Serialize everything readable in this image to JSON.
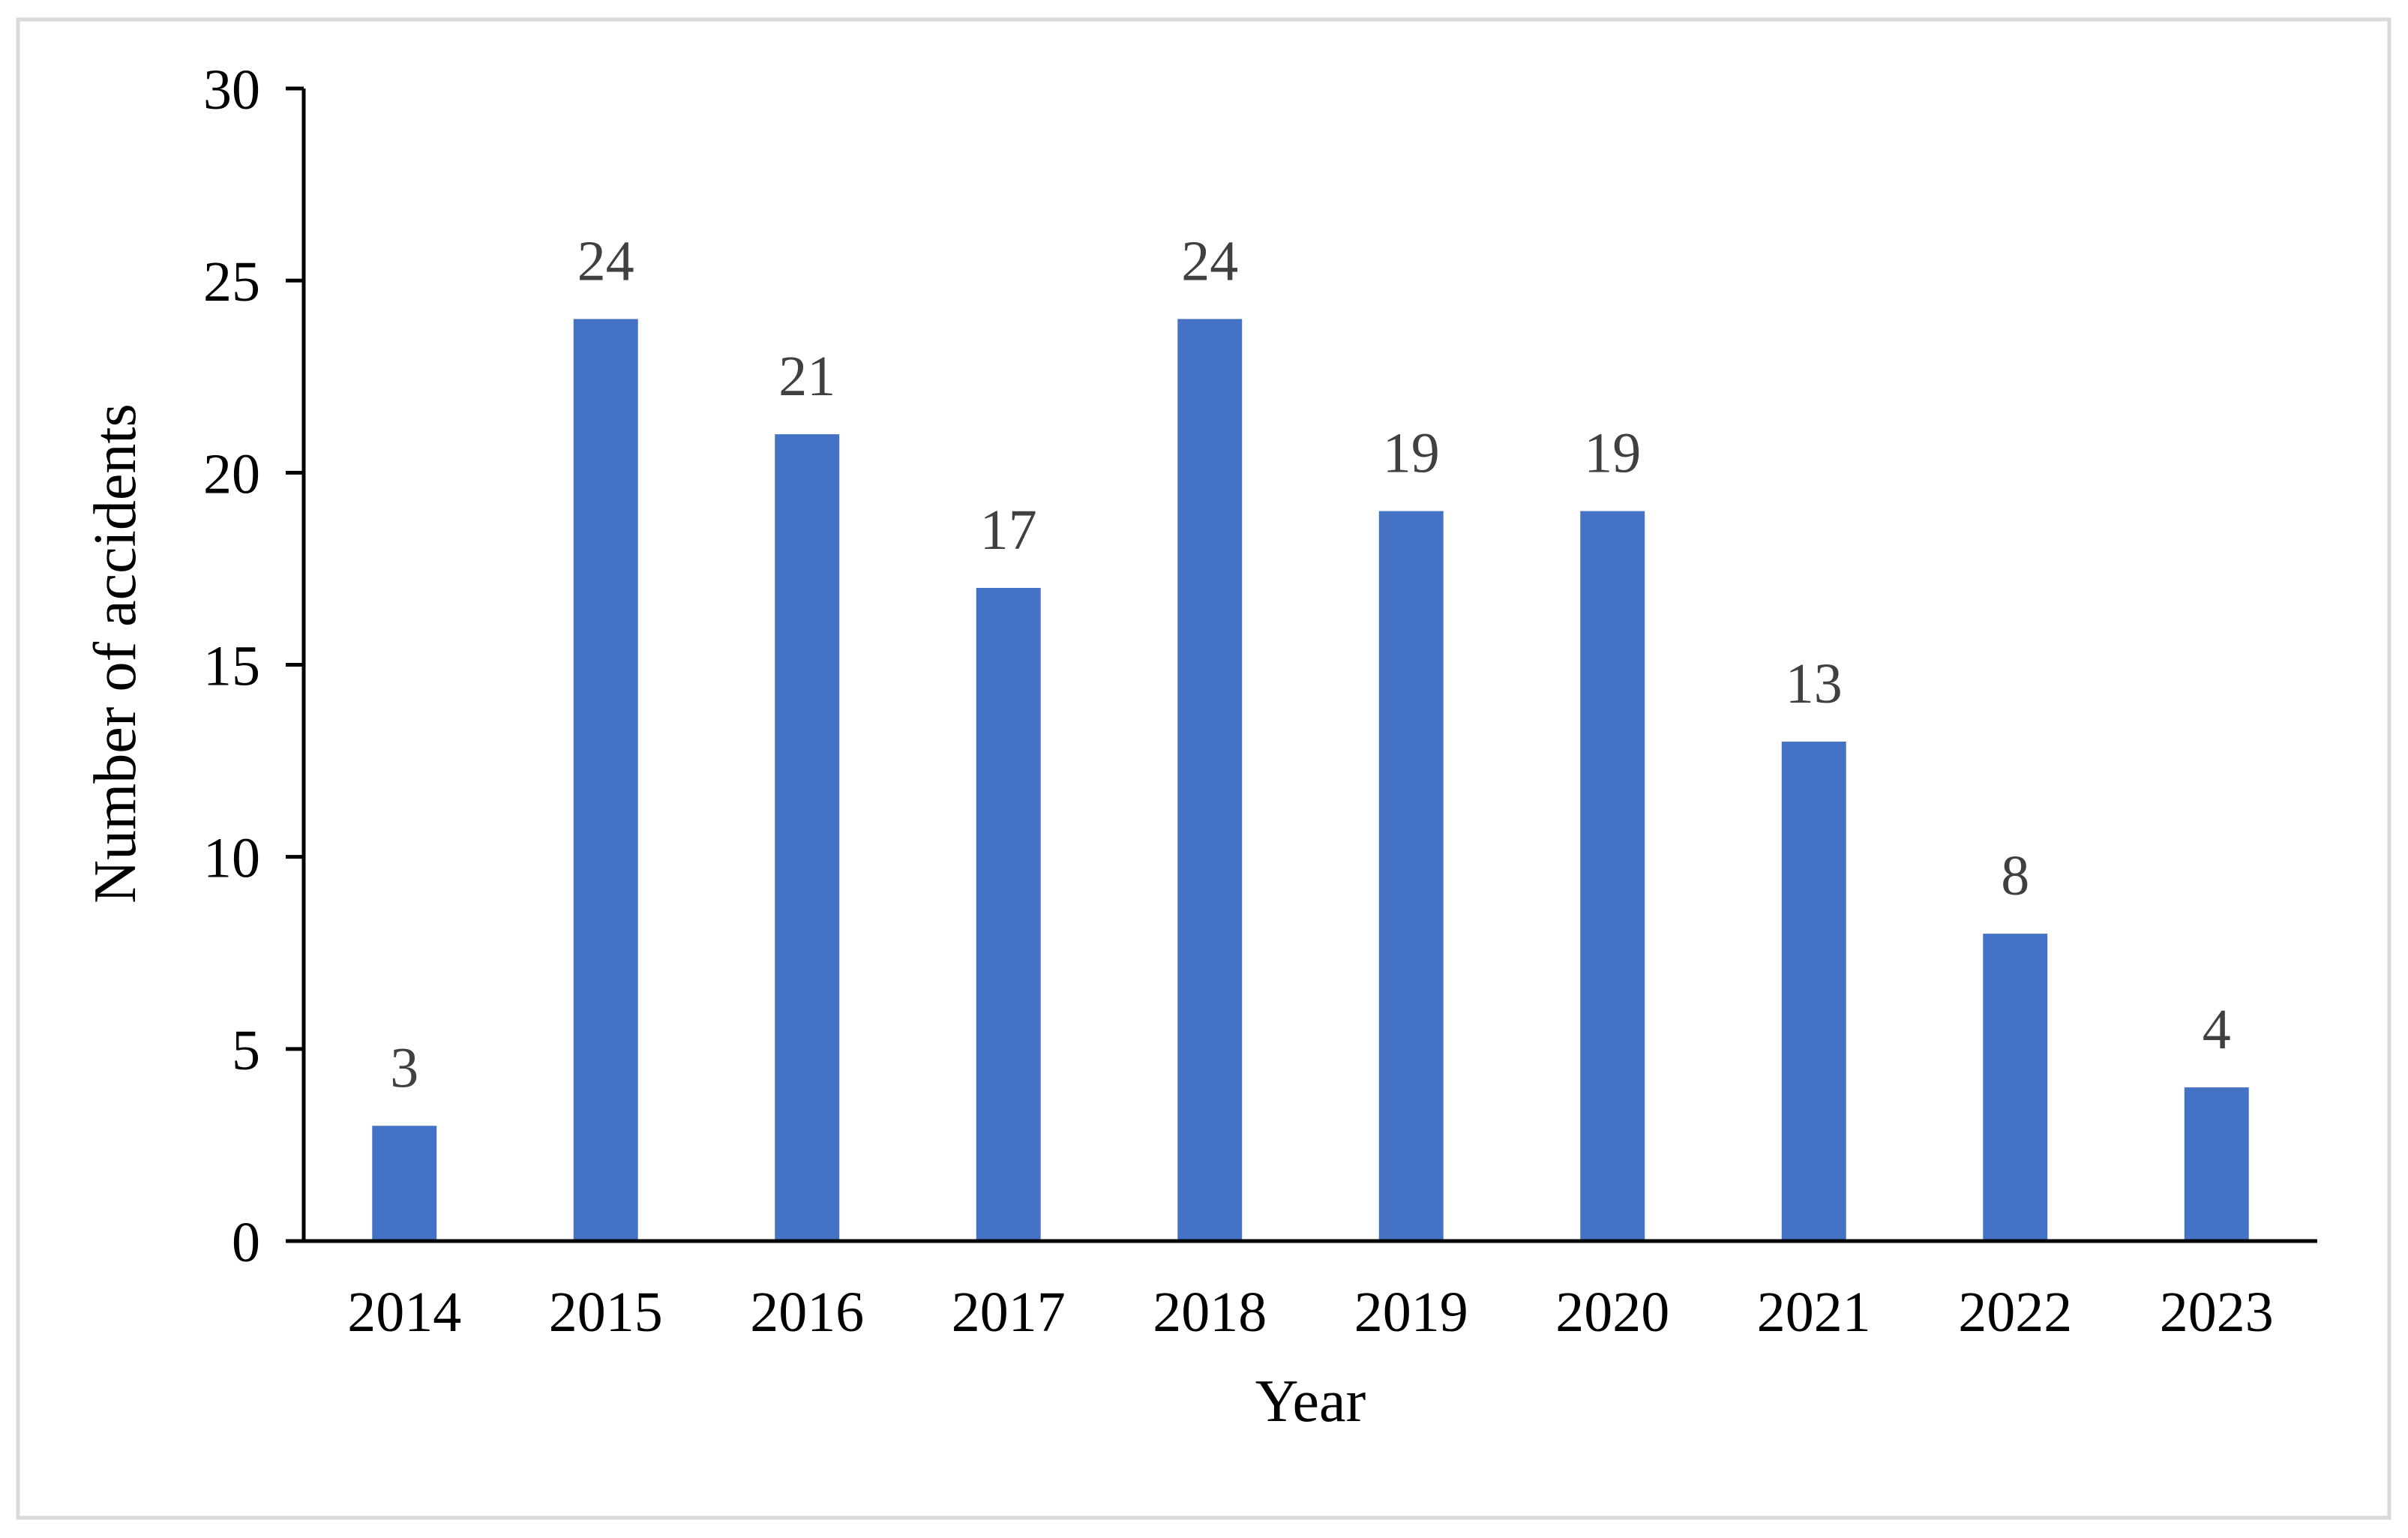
{
  "chart_data": {
    "type": "bar",
    "title": "",
    "xlabel": "Year",
    "ylabel": "Number of accidents",
    "categories": [
      "2014",
      "2015",
      "2016",
      "2017",
      "2018",
      "2019",
      "2020",
      "2021",
      "2022",
      "2023"
    ],
    "series": [
      {
        "values": [
          3,
          24,
          21,
          17,
          24,
          19,
          19,
          13,
          8,
          4
        ],
        "color": "#4472C4"
      }
    ],
    "ylim": [
      0,
      30
    ],
    "yticks": [
      0,
      5,
      10,
      15,
      20,
      25,
      30
    ],
    "data_labels": true,
    "data_label_color": "#404040",
    "grid": false,
    "legend": "none"
  }
}
